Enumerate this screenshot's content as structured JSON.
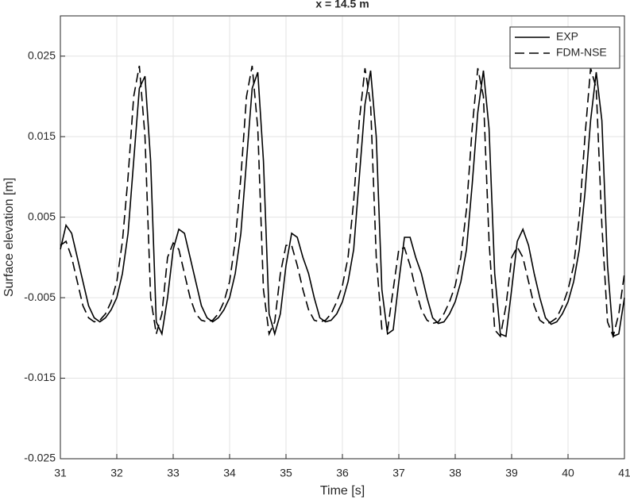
{
  "chart_data": {
    "type": "line",
    "title": "x = 14.5 m",
    "xlabel": "Time [s]",
    "ylabel": "Surface elevation [m]",
    "x": [
      31.0,
      31.1,
      31.2,
      31.3,
      31.4,
      31.5,
      31.6,
      31.7,
      31.8,
      31.9,
      32.0,
      32.1,
      32.2,
      32.3,
      32.4,
      32.5,
      32.6,
      32.7,
      32.8,
      32.9,
      33.0,
      33.1,
      33.2,
      33.3,
      33.4,
      33.5,
      33.6,
      33.7,
      33.8,
      33.9,
      34.0,
      34.1,
      34.2,
      34.3,
      34.4,
      34.5,
      34.6,
      34.7,
      34.8,
      34.9,
      35.0,
      35.1,
      35.2,
      35.3,
      35.4,
      35.5,
      35.6,
      35.7,
      35.8,
      35.9,
      36.0,
      36.1,
      36.2,
      36.3,
      36.4,
      36.5,
      36.6,
      36.7,
      36.8,
      36.9,
      37.0,
      37.1,
      37.2,
      37.3,
      37.4,
      37.5,
      37.6,
      37.7,
      37.8,
      37.9,
      38.0,
      38.1,
      38.2,
      38.3,
      38.4,
      38.5,
      38.6,
      38.7,
      38.8,
      38.9,
      39.0,
      39.1,
      39.2,
      39.3,
      39.4,
      39.5,
      39.6,
      39.7,
      39.8,
      39.9,
      40.0,
      40.1,
      40.2,
      40.3,
      40.4,
      40.5,
      40.6,
      40.7,
      40.8,
      40.9,
      41.0
    ],
    "series": [
      {
        "name": "EXP",
        "color": "#000000",
        "line_style": "solid",
        "values": [
          0.001,
          0.004,
          0.003,
          0.0,
          -0.003,
          -0.006,
          -0.0075,
          -0.008,
          -0.0075,
          -0.0065,
          -0.005,
          -0.002,
          0.003,
          0.012,
          0.021,
          0.0225,
          0.012,
          -0.008,
          -0.0095,
          -0.005,
          0.001,
          0.0035,
          0.003,
          0.0,
          -0.003,
          -0.006,
          -0.0075,
          -0.008,
          -0.0075,
          -0.0065,
          -0.005,
          -0.002,
          0.003,
          0.012,
          0.021,
          0.023,
          0.012,
          -0.007,
          -0.0095,
          -0.007,
          -0.001,
          0.003,
          0.0025,
          0.0,
          -0.002,
          -0.005,
          -0.0075,
          -0.008,
          -0.0078,
          -0.007,
          -0.0055,
          -0.003,
          0.001,
          0.01,
          0.019,
          0.0232,
          0.015,
          -0.004,
          -0.0095,
          -0.009,
          -0.003,
          0.0025,
          0.0025,
          0.0,
          -0.002,
          -0.005,
          -0.0075,
          -0.0082,
          -0.008,
          -0.007,
          -0.0055,
          -0.003,
          0.001,
          0.009,
          0.018,
          0.0232,
          0.016,
          -0.002,
          -0.0095,
          -0.0098,
          -0.004,
          0.002,
          0.0035,
          0.0015,
          -0.002,
          -0.005,
          -0.0075,
          -0.0083,
          -0.008,
          -0.007,
          -0.0055,
          -0.003,
          0.001,
          0.008,
          0.017,
          0.023,
          0.017,
          -0.001,
          -0.0098,
          -0.0095,
          -0.005
        ]
      },
      {
        "name": "FDM-NSE",
        "color": "#000000",
        "line_style": "dashed",
        "values": [
          0.0015,
          0.002,
          0.0,
          -0.003,
          -0.006,
          -0.0075,
          -0.008,
          -0.0078,
          -0.007,
          -0.0055,
          -0.003,
          0.002,
          0.01,
          0.02,
          0.0238,
          0.015,
          -0.005,
          -0.0095,
          -0.007,
          0.0,
          0.0018,
          0.001,
          -0.002,
          -0.005,
          -0.007,
          -0.0078,
          -0.008,
          -0.0078,
          -0.007,
          -0.0055,
          -0.003,
          0.002,
          0.01,
          0.02,
          0.0238,
          0.016,
          -0.004,
          -0.0095,
          -0.008,
          -0.002,
          0.0015,
          0.0015,
          -0.001,
          -0.004,
          -0.0065,
          -0.0078,
          -0.008,
          -0.0078,
          -0.007,
          -0.0055,
          -0.0035,
          0.0,
          0.007,
          0.017,
          0.0235,
          0.019,
          0.0,
          -0.009,
          -0.009,
          -0.004,
          0.001,
          0.0012,
          -0.001,
          -0.004,
          -0.0065,
          -0.0078,
          -0.0082,
          -0.008,
          -0.007,
          -0.0055,
          -0.0035,
          0.0,
          0.006,
          0.016,
          0.0235,
          0.02,
          0.002,
          -0.009,
          -0.0098,
          -0.006,
          0.0,
          0.0013,
          0.0,
          -0.003,
          -0.006,
          -0.0078,
          -0.0083,
          -0.008,
          -0.0075,
          -0.006,
          -0.004,
          -0.001,
          0.005,
          0.015,
          0.0235,
          0.021,
          0.004,
          -0.008,
          -0.0098,
          -0.007,
          -0.002
        ]
      }
    ],
    "xlim": [
      31,
      41
    ],
    "xticks": [
      31,
      32,
      33,
      34,
      35,
      36,
      37,
      38,
      39,
      40,
      41
    ],
    "ylim": [
      -0.025,
      0.03
    ],
    "yticks": [
      -0.025,
      -0.015,
      -0.005,
      0.005,
      0.015,
      0.025
    ],
    "grid": true,
    "legend": "northeast"
  }
}
